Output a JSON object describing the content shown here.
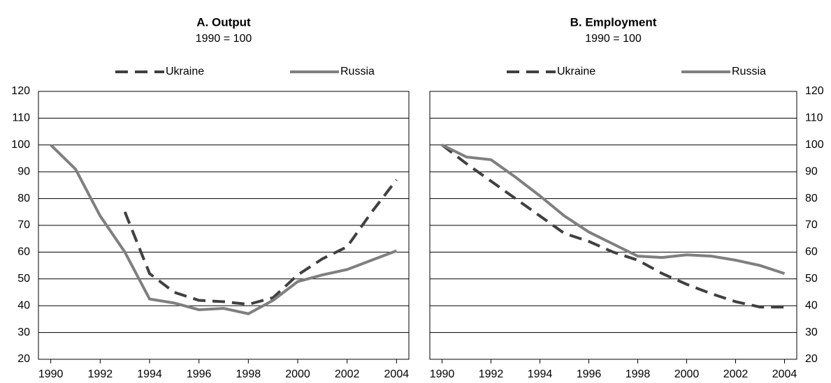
{
  "chart_data": [
    {
      "type": "line",
      "title": "A. Output",
      "subtitle": "1990 = 100",
      "yaxis_side": "left",
      "x": [
        1990,
        1991,
        1992,
        1993,
        1994,
        1995,
        1996,
        1997,
        1998,
        1999,
        2000,
        2001,
        2002,
        2003,
        2004
      ],
      "series": [
        {
          "name": "Ukraine",
          "color": "#404040",
          "dashed": true,
          "values": [
            null,
            null,
            null,
            75,
            52,
            45,
            42,
            41.5,
            40.5,
            43,
            51.5,
            57.5,
            62,
            75,
            87
          ]
        },
        {
          "name": "Russia",
          "color": "#7f7f7f",
          "dashed": false,
          "values": [
            100,
            91,
            73.5,
            60,
            42.5,
            41,
            38.5,
            39,
            37,
            42,
            49,
            51.5,
            53.5,
            57,
            60.5
          ]
        }
      ],
      "xlim": [
        1989.5,
        2004.5
      ],
      "xticks": [
        1990,
        1992,
        1994,
        1996,
        1998,
        2000,
        2002,
        2004
      ],
      "ylim": [
        20,
        120
      ],
      "yticks": [
        20,
        30,
        40,
        50,
        60,
        70,
        80,
        90,
        100,
        110,
        120
      ],
      "grid": true
    },
    {
      "type": "line",
      "title": "B. Employment",
      "subtitle": "1990 = 100",
      "yaxis_side": "right",
      "x": [
        1990,
        1991,
        1992,
        1993,
        1994,
        1995,
        1996,
        1997,
        1998,
        1999,
        2000,
        2001,
        2002,
        2003,
        2004
      ],
      "series": [
        {
          "name": "Ukraine",
          "color": "#404040",
          "dashed": true,
          "values": [
            100,
            93,
            86.5,
            80,
            73.5,
            67,
            64,
            60,
            57,
            52,
            48,
            44.5,
            41.5,
            39.5,
            39.5
          ]
        },
        {
          "name": "Russia",
          "color": "#7f7f7f",
          "dashed": false,
          "values": [
            100,
            95.5,
            94.5,
            88,
            81,
            73.5,
            67.5,
            63,
            58.5,
            58,
            59,
            58.5,
            57,
            55,
            52
          ]
        }
      ],
      "xlim": [
        1989.5,
        2004.5
      ],
      "xticks": [
        1990,
        1992,
        1994,
        1996,
        1998,
        2000,
        2002,
        2004
      ],
      "ylim": [
        20,
        120
      ],
      "yticks": [
        20,
        30,
        40,
        50,
        60,
        70,
        80,
        90,
        100,
        110,
        120
      ],
      "grid": true
    }
  ]
}
